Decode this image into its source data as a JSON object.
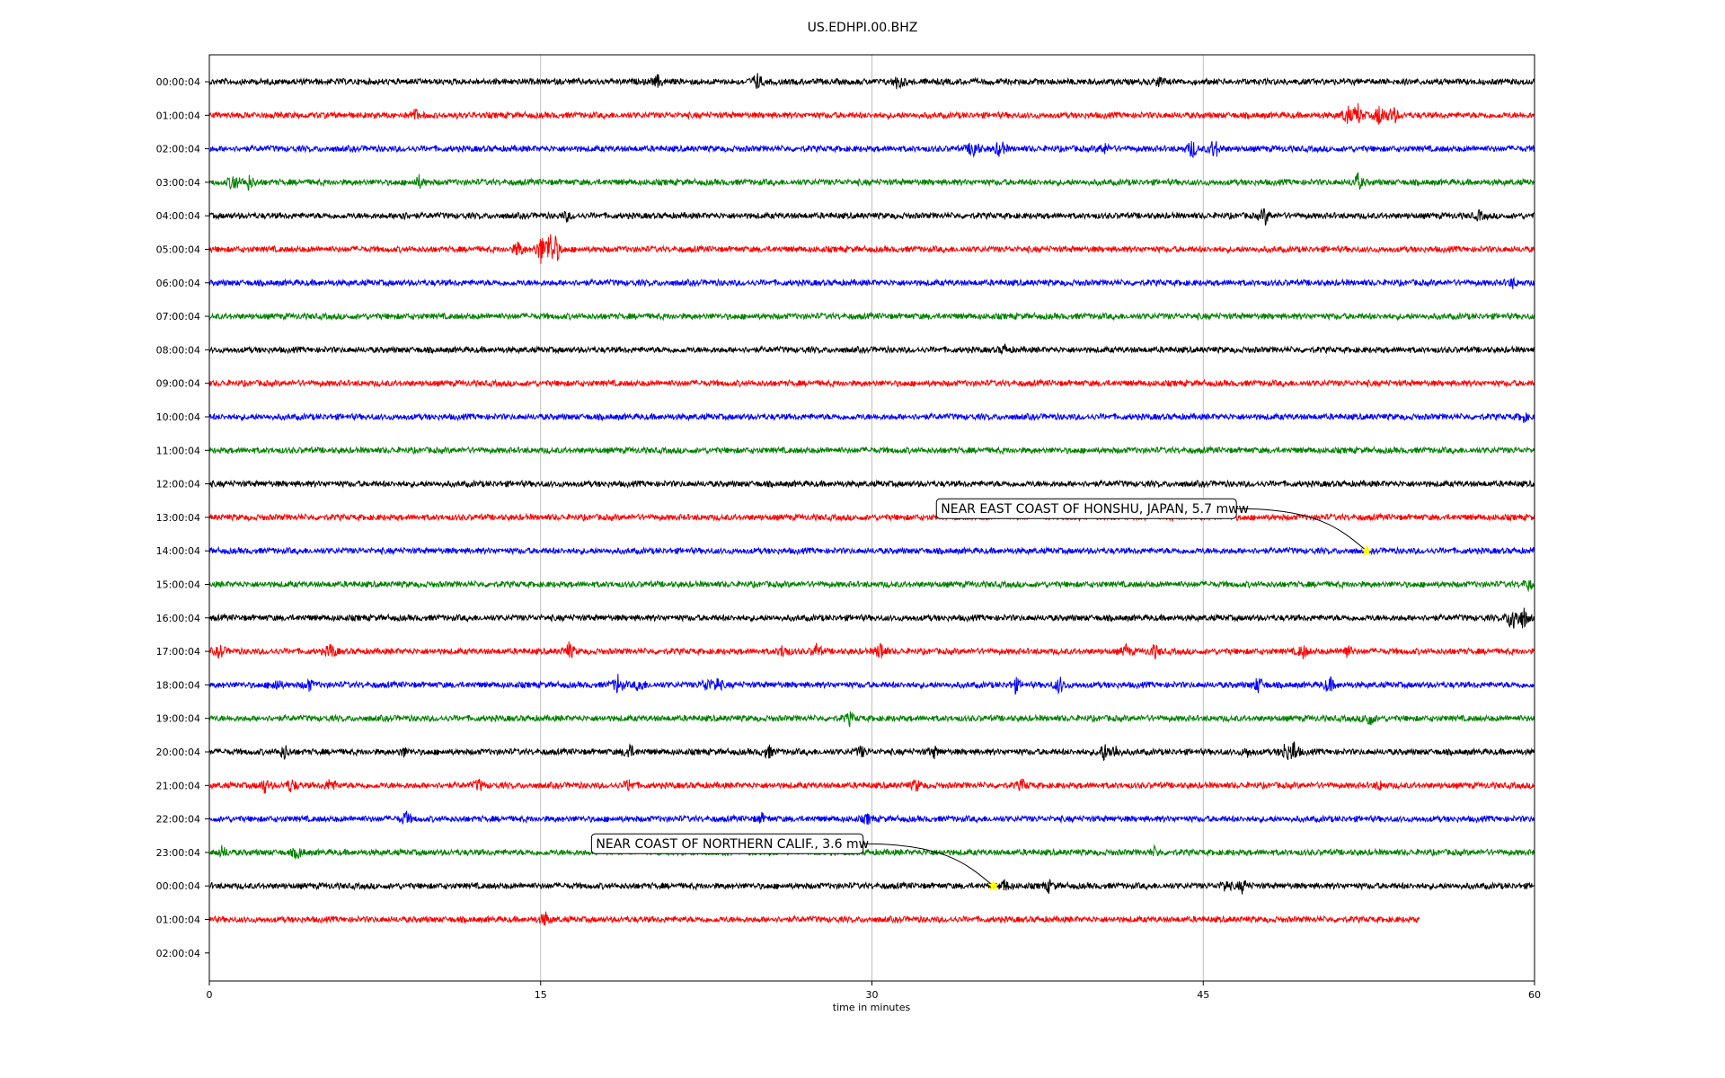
{
  "chart_data": {
    "type": "line",
    "title": "US.EDHPI.00.BHZ",
    "xlabel": "time in minutes",
    "ylabel": "",
    "xlim": [
      0,
      60
    ],
    "x_ticks": [
      "0",
      "15",
      "30",
      "45",
      "60"
    ],
    "x_tick_values": [
      0,
      15,
      30,
      45,
      60
    ],
    "grid": "vertical",
    "row_labels": [
      "00:00:04",
      "01:00:04",
      "02:00:04",
      "03:00:04",
      "04:00:04",
      "05:00:04",
      "06:00:04",
      "07:00:04",
      "08:00:04",
      "09:00:04",
      "10:00:04",
      "11:00:04",
      "12:00:04",
      "13:00:04",
      "14:00:04",
      "15:00:04",
      "16:00:04",
      "17:00:04",
      "18:00:04",
      "19:00:04",
      "20:00:04",
      "21:00:04",
      "22:00:04",
      "23:00:04",
      "00:00:04",
      "01:00:04",
      "02:00:04"
    ],
    "trace_colors": [
      "#000000",
      "#ff0000",
      "#0000ff",
      "#008000"
    ],
    "traces": [
      {
        "row": 0,
        "end": 60,
        "bursts": [
          [
            20.3,
            2
          ],
          [
            24.8,
            3
          ],
          [
            31.2,
            3
          ],
          [
            43,
            1.5
          ]
        ]
      },
      {
        "row": 1,
        "end": 60,
        "bursts": [
          [
            9.3,
            2
          ],
          [
            51.5,
            3.5
          ],
          [
            52,
            4
          ],
          [
            53,
            4.5
          ],
          [
            53.6,
            3.5
          ]
        ]
      },
      {
        "row": 2,
        "end": 60,
        "bursts": [
          [
            34.6,
            4
          ],
          [
            35.8,
            3.5
          ],
          [
            40.5,
            2
          ],
          [
            44.5,
            3.5
          ],
          [
            45.5,
            4
          ]
        ]
      },
      {
        "row": 3,
        "end": 60,
        "bursts": [
          [
            1.1,
            3.5
          ],
          [
            1.8,
            2.5
          ],
          [
            9.5,
            2
          ],
          [
            52,
            3
          ]
        ]
      },
      {
        "row": 4,
        "end": 60,
        "bursts": [
          [
            8.7,
            1.5
          ],
          [
            16.2,
            1.5
          ],
          [
            47.8,
            3
          ],
          [
            57.5,
            1.5
          ]
        ]
      },
      {
        "row": 5,
        "end": 60,
        "bursts": [
          [
            14,
            3
          ],
          [
            15,
            5
          ],
          [
            15.4,
            6
          ],
          [
            15.7,
            4
          ]
        ]
      },
      {
        "row": 6,
        "end": 60,
        "bursts": [
          [
            59,
            1.5
          ]
        ]
      },
      {
        "row": 7,
        "end": 60,
        "bursts": []
      },
      {
        "row": 8,
        "end": 60,
        "bursts": [
          [
            36,
            1.5
          ]
        ]
      },
      {
        "row": 9,
        "end": 60,
        "bursts": []
      },
      {
        "row": 10,
        "end": 60,
        "bursts": [
          [
            59.5,
            1.5
          ]
        ]
      },
      {
        "row": 11,
        "end": 60,
        "bursts": []
      },
      {
        "row": 12,
        "end": 60,
        "bursts": []
      },
      {
        "row": 13,
        "end": 60,
        "bursts": []
      },
      {
        "row": 14,
        "end": 60,
        "bursts": []
      },
      {
        "row": 15,
        "end": 60,
        "bursts": [
          [
            59.7,
            2
          ]
        ]
      },
      {
        "row": 16,
        "end": 60,
        "bursts": [
          [
            59,
            6
          ],
          [
            59.5,
            4
          ]
        ]
      },
      {
        "row": 17,
        "end": 60,
        "bursts": [
          [
            0.5,
            2.5
          ],
          [
            5.5,
            3
          ],
          [
            16.3,
            3
          ],
          [
            26,
            2.5
          ],
          [
            27.5,
            2.5
          ],
          [
            30.4,
            3.5
          ],
          [
            41.5,
            2
          ],
          [
            42.8,
            2.5
          ],
          [
            49.5,
            2.5
          ],
          [
            51.5,
            2.5
          ]
        ]
      },
      {
        "row": 18,
        "end": 60,
        "bursts": [
          [
            3,
            2.5
          ],
          [
            4.5,
            2
          ],
          [
            18.5,
            3.5
          ],
          [
            19.5,
            2.5
          ],
          [
            22.5,
            2.5
          ],
          [
            23,
            2.5
          ],
          [
            36.5,
            2.5
          ],
          [
            38.5,
            3
          ],
          [
            47.5,
            3
          ],
          [
            50.7,
            3
          ]
        ]
      },
      {
        "row": 19,
        "end": 60,
        "bursts": [
          [
            29,
            2
          ],
          [
            52.5,
            3
          ]
        ]
      },
      {
        "row": 20,
        "end": 60,
        "bursts": [
          [
            3.4,
            2.5
          ],
          [
            8.8,
            1.5
          ],
          [
            19,
            3
          ],
          [
            25.3,
            2.5
          ],
          [
            29.5,
            2
          ],
          [
            32.8,
            2
          ],
          [
            40.5,
            3
          ],
          [
            41,
            2.5
          ],
          [
            47,
            1.5
          ],
          [
            48.7,
            3
          ],
          [
            49.1,
            4
          ]
        ]
      },
      {
        "row": 21,
        "end": 60,
        "bursts": [
          [
            2.5,
            2.5
          ],
          [
            3.7,
            2.5
          ],
          [
            5.5,
            2.5
          ],
          [
            12.2,
            2
          ],
          [
            19,
            2
          ],
          [
            32,
            2
          ],
          [
            36.8,
            2
          ],
          [
            53,
            1.5
          ]
        ]
      },
      {
        "row": 22,
        "end": 60,
        "bursts": [
          [
            8.9,
            2.5
          ],
          [
            25,
            1.5
          ],
          [
            29.8,
            1.5
          ]
        ]
      },
      {
        "row": 23,
        "end": 60,
        "bursts": [
          [
            0.6,
            2
          ],
          [
            4,
            2
          ],
          [
            42.8,
            1.5
          ]
        ]
      },
      {
        "row": 24,
        "end": 60,
        "bursts": [
          [
            36,
            2
          ],
          [
            38,
            2
          ],
          [
            46,
            2
          ],
          [
            46.8,
            2.5
          ]
        ]
      },
      {
        "row": 25,
        "end": 54.8,
        "bursts": [
          [
            15.2,
            2.5
          ]
        ]
      }
    ],
    "annotations": [
      {
        "text": "NEAR EAST COAST OF HONSHU, JAPAN, 5.7 mww",
        "row": 14,
        "minute": 52.4
      },
      {
        "text": "NEAR COAST OF NORTHERN CALIF., 3.6 mw",
        "row": 24,
        "minute": 35.5
      }
    ],
    "event_marker_color": "#ffff00"
  }
}
